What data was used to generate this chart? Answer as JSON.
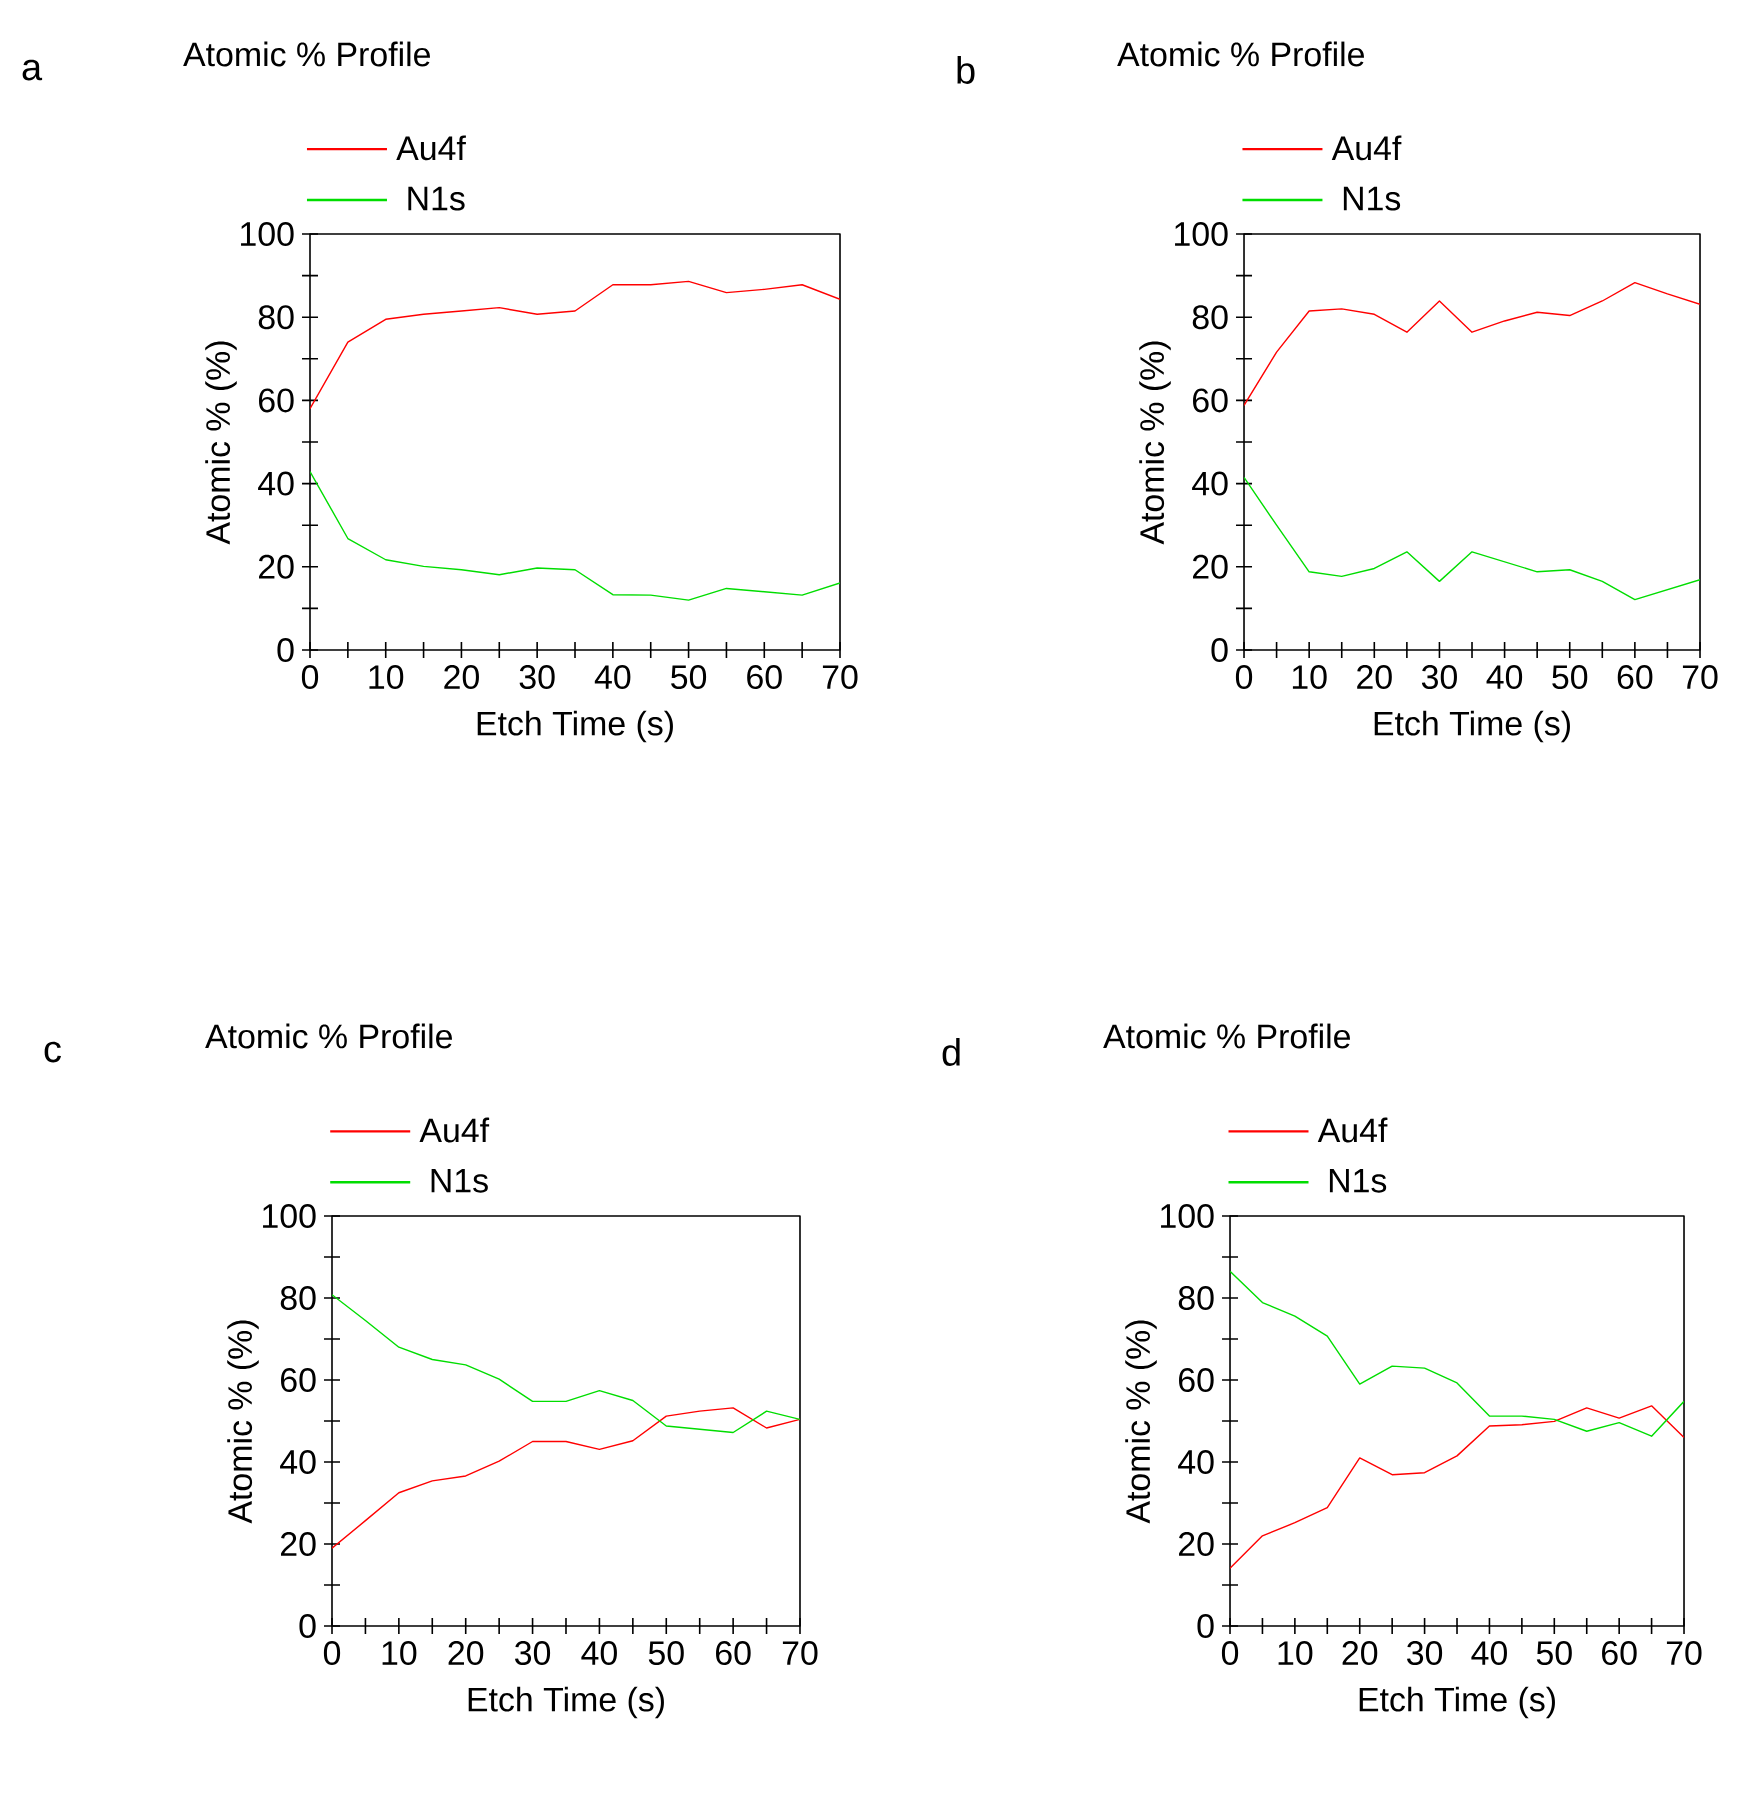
{
  "chart_data": [
    {
      "type": "line",
      "title": "a",
      "legend_title": "Atomic % Profile",
      "xlabel": "Etch Time (s)",
      "ylabel": "Atomic % (%)",
      "legend": "top",
      "x": [
        0,
        5,
        10,
        15,
        20,
        25,
        30,
        35,
        40,
        45,
        50,
        55,
        60,
        65,
        70
      ],
      "xlim": [
        0,
        70
      ],
      "ylim": [
        0,
        100
      ],
      "xticks": [
        0,
        {
          "value": 5,
          "label": null
        },
        10,
        {
          "value": 15,
          "label": null
        },
        20,
        {
          "value": 25,
          "label": null
        },
        30,
        {
          "value": 35,
          "label": null
        },
        40,
        {
          "value": 45,
          "label": null
        },
        50,
        {
          "value": 55,
          "label": null
        },
        60,
        {
          "value": 65,
          "label": null
        },
        70
      ],
      "yticks": [
        0,
        {
          "value": 10,
          "label": null
        },
        20,
        {
          "value": 30,
          "label": null
        },
        40,
        {
          "value": 50,
          "label": null
        },
        60,
        {
          "value": 70,
          "label": null
        },
        80,
        {
          "value": 90,
          "label": null
        },
        100
      ],
      "series": [
        {
          "name": "Au4f",
          "color": "#ff0000",
          "values": [
            58,
            74,
            79.5,
            80.7,
            81.5,
            82.3,
            80.7,
            81.5,
            87.8,
            87.8,
            88.6,
            85.9,
            86.7,
            87.8,
            84.3
          ]
        },
        {
          "name": "N1s",
          "color": "#00dd00",
          "values": [
            42.9,
            26.8,
            21.7,
            20.1,
            19.3,
            18.1,
            19.7,
            19.3,
            13.3,
            13.2,
            12,
            14.8,
            14,
            13.2,
            16.1
          ]
        }
      ]
    },
    {
      "type": "line",
      "title": "b",
      "legend_title": "Atomic % Profile",
      "xlabel": "Etch Time (s)",
      "ylabel": "Atomic % (%)",
      "legend": "top",
      "x": [
        0,
        5,
        10,
        15,
        20,
        25,
        30,
        35,
        40,
        45,
        50,
        55,
        60,
        65,
        70
      ],
      "xlim": [
        0,
        70
      ],
      "ylim": [
        0,
        100
      ],
      "xticks": [
        0,
        {
          "value": 5,
          "label": null
        },
        10,
        {
          "value": 15,
          "label": null
        },
        20,
        {
          "value": 25,
          "label": null
        },
        30,
        {
          "value": 35,
          "label": null
        },
        40,
        {
          "value": 45,
          "label": null
        },
        50,
        {
          "value": 55,
          "label": null
        },
        60,
        {
          "value": 65,
          "label": null
        },
        70
      ],
      "yticks": [
        0,
        {
          "value": 10,
          "label": null
        },
        20,
        {
          "value": 30,
          "label": null
        },
        40,
        {
          "value": 50,
          "label": null
        },
        60,
        {
          "value": 70,
          "label": null
        },
        80,
        {
          "value": 90,
          "label": null
        },
        100
      ],
      "series": [
        {
          "name": "Au4f",
          "color": "#ff0000",
          "values": [
            58.8,
            71.6,
            81.5,
            82,
            80.7,
            76.4,
            83.9,
            76.4,
            79.1,
            81.2,
            80.4,
            83.9,
            88.3,
            85.6,
            83.1
          ]
        },
        {
          "name": "N1s",
          "color": "#00dd00",
          "values": [
            41.5,
            30,
            18.8,
            17.7,
            19.6,
            23.6,
            16.5,
            23.6,
            21.2,
            18.8,
            19.3,
            16.5,
            12.1,
            14.5,
            16.9
          ]
        }
      ]
    },
    {
      "type": "line",
      "title": "c",
      "legend_title": "Atomic % Profile",
      "xlabel": "Etch Time (s)",
      "ylabel": "Atomic % (%)",
      "legend": "top",
      "x": [
        0,
        5,
        10,
        15,
        20,
        25,
        30,
        35,
        40,
        45,
        50,
        55,
        60,
        65,
        70
      ],
      "xlim": [
        0,
        70
      ],
      "ylim": [
        0,
        100
      ],
      "xticks": [
        0,
        {
          "value": 5,
          "label": null
        },
        10,
        {
          "value": 15,
          "label": null
        },
        20,
        {
          "value": 25,
          "label": null
        },
        30,
        {
          "value": 35,
          "label": null
        },
        40,
        {
          "value": 45,
          "label": null
        },
        50,
        {
          "value": 55,
          "label": null
        },
        60,
        {
          "value": 65,
          "label": null
        },
        70
      ],
      "yticks": [
        0,
        {
          "value": 10,
          "label": null
        },
        20,
        {
          "value": 30,
          "label": null
        },
        40,
        {
          "value": 50,
          "label": null
        },
        60,
        {
          "value": 70,
          "label": null
        },
        80,
        {
          "value": 90,
          "label": null
        },
        100
      ],
      "series": [
        {
          "name": "Au4f",
          "color": "#ff0000",
          "values": [
            19,
            25.7,
            32.5,
            35.4,
            36.6,
            40.2,
            45,
            45,
            43.1,
            45.2,
            51.2,
            52.4,
            53.2,
            48.3,
            50.4
          ]
        },
        {
          "name": "N1s",
          "color": "#00dd00",
          "values": [
            80.8,
            74.5,
            68,
            65,
            63.7,
            60.2,
            54.8,
            54.8,
            57.4,
            55,
            48.8,
            48,
            47.2,
            52.4,
            50.4
          ]
        }
      ]
    },
    {
      "type": "line",
      "title": "d",
      "legend_title": "Atomic % Profile",
      "xlabel": "Etch Time (s)",
      "ylabel": "Atomic % (%)",
      "legend": "top",
      "x": [
        0,
        5,
        10,
        15,
        20,
        25,
        30,
        35,
        40,
        45,
        50,
        55,
        60,
        65,
        70
      ],
      "xlim": [
        0,
        70
      ],
      "ylim": [
        0,
        100
      ],
      "xticks": [
        0,
        {
          "value": 5,
          "label": null
        },
        10,
        {
          "value": 15,
          "label": null
        },
        20,
        {
          "value": 25,
          "label": null
        },
        30,
        {
          "value": 35,
          "label": null
        },
        40,
        {
          "value": 45,
          "label": null
        },
        50,
        {
          "value": 55,
          "label": null
        },
        60,
        {
          "value": 65,
          "label": null
        },
        70
      ],
      "yticks": [
        0,
        {
          "value": 10,
          "label": null
        },
        20,
        {
          "value": 30,
          "label": null
        },
        40,
        {
          "value": 50,
          "label": null
        },
        60,
        {
          "value": 70,
          "label": null
        },
        80,
        {
          "value": 90,
          "label": null
        },
        100
      ],
      "series": [
        {
          "name": "Au4f",
          "color": "#ff0000",
          "values": [
            14.1,
            22,
            25.2,
            28.9,
            41,
            36.9,
            37.4,
            41.5,
            48.8,
            49.1,
            49.9,
            53.2,
            50.7,
            53.7,
            46
          ]
        },
        {
          "name": "N1s",
          "color": "#00dd00",
          "values": [
            86.5,
            78.9,
            75.6,
            70.7,
            59,
            63.4,
            62.9,
            59.3,
            51.2,
            51.2,
            50.4,
            47.5,
            49.6,
            46.3,
            54.8
          ]
        }
      ]
    }
  ]
}
